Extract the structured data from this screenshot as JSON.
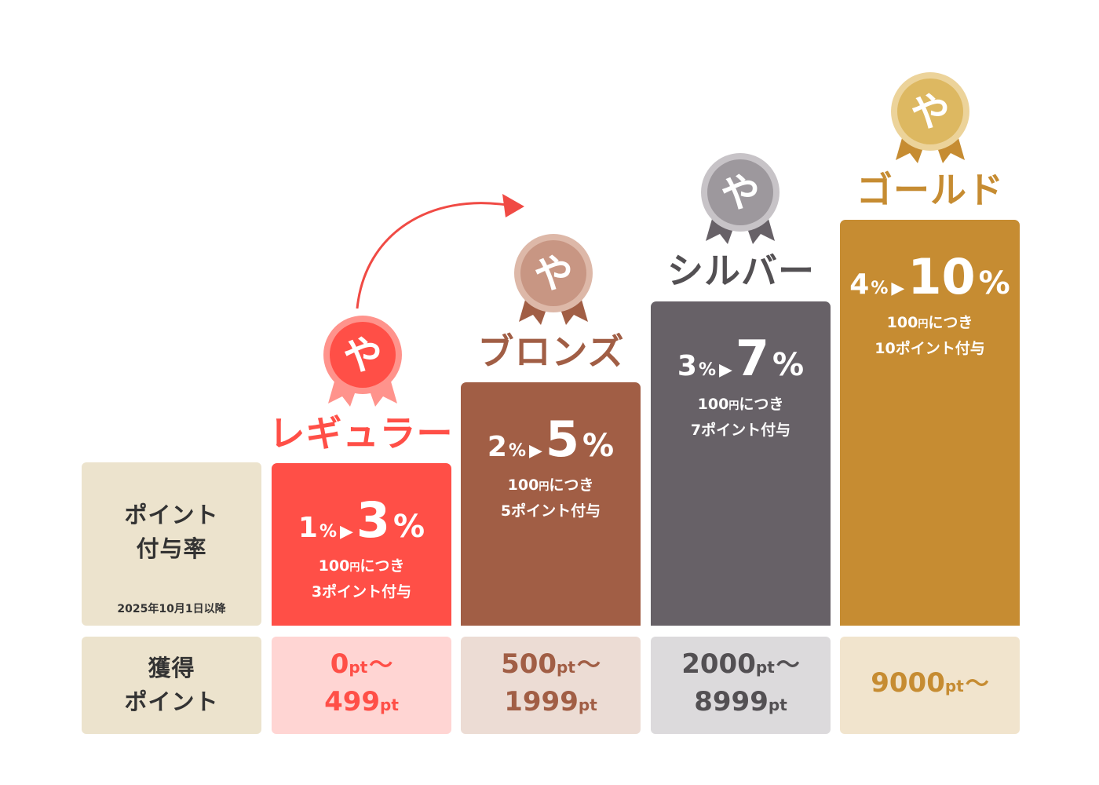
{
  "labels": {
    "rate_title_line1": "ポイント",
    "rate_title_line2": "付与率",
    "rate_note": "2025年10月1日以降",
    "earned_title_line1": "獲得",
    "earned_title_line2": "ポイント"
  },
  "medal_glyph": "や",
  "arrow_glyph": "▶",
  "tiers": [
    {
      "name": "レギュラー",
      "rate_from": "1",
      "rate_to": "3",
      "pct": "%",
      "per_yen": "100円",
      "per_yen_num": "100",
      "per_yen_unit": "円",
      "per_suffix": "につき",
      "per_line2": "3ポイント付与",
      "range_line1_num": "0",
      "range_line1_unit": "pt",
      "range_line1_tilde": "〜",
      "range_line2_num": "499",
      "range_line2_unit": "pt",
      "color_bar": "#ff4f47",
      "color_range_bg": "#ffd5d3",
      "color_text": "#ff4f47"
    },
    {
      "name": "ブロンズ",
      "rate_from": "2",
      "rate_to": "5",
      "pct": "%",
      "per_yen_num": "100",
      "per_yen_unit": "円",
      "per_suffix": "につき",
      "per_line2": "5ポイント付与",
      "range_line1_num": "500",
      "range_line1_unit": "pt",
      "range_line1_tilde": "〜",
      "range_line2_num": "1999",
      "range_line2_unit": "pt",
      "color_bar": "#a15e45",
      "color_range_bg": "#ecdcd4",
      "color_text": "#a15e45"
    },
    {
      "name": "シルバー",
      "rate_from": "3",
      "rate_to": "7",
      "pct": "%",
      "per_yen_num": "100",
      "per_yen_unit": "円",
      "per_suffix": "につき",
      "per_line2": "7ポイント付与",
      "range_line1_num": "2000",
      "range_line1_unit": "pt",
      "range_line1_tilde": "〜",
      "range_line2_num": "8999",
      "range_line2_unit": "pt",
      "color_bar": "#676167",
      "color_range_bg": "#dcdadc",
      "color_text": "#535053"
    },
    {
      "name": "ゴールド",
      "rate_from": "4",
      "rate_to": "10",
      "pct": "%",
      "per_yen_num": "100",
      "per_yen_unit": "円",
      "per_suffix": "につき",
      "per_line2": "10ポイント付与",
      "range_line1_num": "9000",
      "range_line1_unit": "pt",
      "range_line1_tilde": "〜",
      "color_bar": "#c68c32",
      "color_range_bg": "#f1e4cd",
      "color_text": "#c68c32"
    }
  ],
  "medal_colors": {
    "regular": {
      "face": "#ff4f47",
      "rim": "#ff938c",
      "ribbon": "#ff938c"
    },
    "bronze": {
      "face": "#c89683",
      "rim": "#ddb8a8",
      "ribbon": "#a15e45"
    },
    "silver": {
      "face": "#9d989d",
      "rim": "#c7c3c7",
      "ribbon": "#676167"
    },
    "gold": {
      "face": "#ddb861",
      "rim": "#ecd39a",
      "ribbon": "#c68c32"
    }
  },
  "upgrade_arrow_color": "#f04a44"
}
